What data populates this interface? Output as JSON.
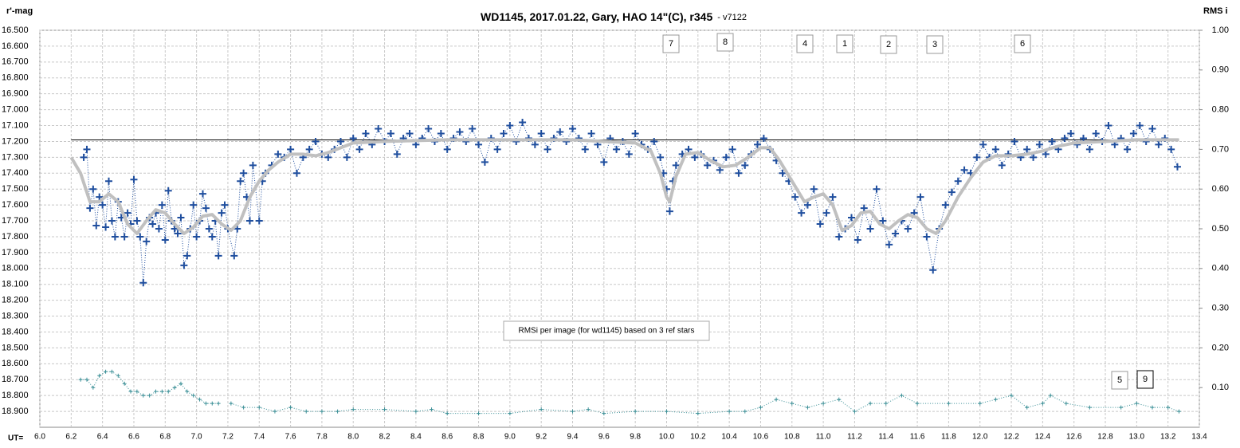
{
  "chart_data": {
    "type": "scatter",
    "title": "WD1145, 2017.01.22,  Gary,  HAO 14\"(C),  r345",
    "subtitle": "- v7122",
    "y_label": "r'-mag",
    "y2_label": "RMS i",
    "x_label": "UT=",
    "note": "RMSi per image (for wd1145) based on 3 ref stars",
    "annotations": [
      "7",
      "8",
      "4",
      "1",
      "2",
      "3",
      "6",
      "5",
      "9"
    ],
    "xlim": [
      6.0,
      13.4
    ],
    "ylim": [
      19.0,
      16.5
    ],
    "y2lim": [
      0,
      1
    ],
    "grid": true,
    "reference_line": {
      "value": 17.19,
      "color": "#000000"
    },
    "xticks": [
      {
        "value": 6.0,
        "label": "6.0"
      },
      {
        "value": 6.2,
        "label": "6.2"
      },
      {
        "value": 6.4,
        "label": "6.4"
      },
      {
        "value": 6.6,
        "label": "6.6"
      },
      {
        "value": 6.8,
        "label": "6.8"
      },
      {
        "value": 7.0,
        "label": "7.0"
      },
      {
        "value": 7.2,
        "label": "7.2"
      },
      {
        "value": 7.4,
        "label": "7.4"
      },
      {
        "value": 7.6,
        "label": "7.6"
      },
      {
        "value": 7.8,
        "label": "7.8"
      },
      {
        "value": 8.0,
        "label": "8.0"
      },
      {
        "value": 8.2,
        "label": "8.2"
      },
      {
        "value": 8.4,
        "label": "8.4"
      },
      {
        "value": 8.6,
        "label": "8.6"
      },
      {
        "value": 8.8,
        "label": "8.8"
      },
      {
        "value": 9.0,
        "label": "9.0"
      },
      {
        "value": 9.2,
        "label": "9.2"
      },
      {
        "value": 9.4,
        "label": "9.4"
      },
      {
        "value": 9.6,
        "label": "9.6"
      },
      {
        "value": 9.8,
        "label": "9.8"
      },
      {
        "value": 10.0,
        "label": "10.0"
      },
      {
        "value": 10.2,
        "label": "10.2"
      },
      {
        "value": 10.4,
        "label": "10.4"
      },
      {
        "value": 10.6,
        "label": "10.6"
      },
      {
        "value": 10.8,
        "label": "10.8"
      },
      {
        "value": 11.0,
        "label": "11.0"
      },
      {
        "value": 11.2,
        "label": "11.2"
      },
      {
        "value": 11.4,
        "label": "11.4"
      },
      {
        "value": 11.6,
        "label": "11.6"
      },
      {
        "value": 11.8,
        "label": "11.8"
      },
      {
        "value": 12.0,
        "label": "12.0"
      },
      {
        "value": 12.2,
        "label": "12.2"
      },
      {
        "value": 12.4,
        "label": "12.4"
      },
      {
        "value": 12.6,
        "label": "12.6"
      },
      {
        "value": 12.8,
        "label": "12.8"
      },
      {
        "value": 13.0,
        "label": "13.0"
      },
      {
        "value": 13.2,
        "label": "13.2"
      },
      {
        "value": 13.4,
        "label": "13.4"
      }
    ],
    "yticks": [
      {
        "value": 16.5,
        "label": "16.500"
      },
      {
        "value": 16.6,
        "label": "16.600"
      },
      {
        "value": 16.7,
        "label": "16.700"
      },
      {
        "value": 16.8,
        "label": "16.800"
      },
      {
        "value": 16.9,
        "label": "16.900"
      },
      {
        "value": 17.0,
        "label": "17.000"
      },
      {
        "value": 17.1,
        "label": "17.100"
      },
      {
        "value": 17.2,
        "label": "17.200"
      },
      {
        "value": 17.3,
        "label": "17.300"
      },
      {
        "value": 17.4,
        "label": "17.400"
      },
      {
        "value": 17.5,
        "label": "17.500"
      },
      {
        "value": 17.6,
        "label": "17.600"
      },
      {
        "value": 17.7,
        "label": "17.700"
      },
      {
        "value": 17.8,
        "label": "17.800"
      },
      {
        "value": 17.9,
        "label": "17.900"
      },
      {
        "value": 18.0,
        "label": "18.000"
      },
      {
        "value": 18.1,
        "label": "18.100"
      },
      {
        "value": 18.2,
        "label": "18.200"
      },
      {
        "value": 18.3,
        "label": "18.300"
      },
      {
        "value": 18.4,
        "label": "18.400"
      },
      {
        "value": 18.5,
        "label": "18.500"
      },
      {
        "value": 18.6,
        "label": "18.600"
      },
      {
        "value": 18.7,
        "label": "18.700"
      },
      {
        "value": 18.8,
        "label": "18.800"
      },
      {
        "value": 18.9,
        "label": "18.900"
      }
    ],
    "y2ticks": [
      {
        "value": 0.1,
        "label": "0.10"
      },
      {
        "value": 0.2,
        "label": "0.20"
      },
      {
        "value": 0.3,
        "label": "0.30"
      },
      {
        "value": 0.4,
        "label": "0.40"
      },
      {
        "value": 0.5,
        "label": "0.50"
      },
      {
        "value": 0.6,
        "label": "0.60"
      },
      {
        "value": 0.7,
        "label": "0.70"
      },
      {
        "value": 0.8,
        "label": "0.80"
      },
      {
        "value": 0.9,
        "label": "0.90"
      },
      {
        "value": 1.0,
        "label": "1.00"
      }
    ],
    "series": [
      {
        "color": "#1f4e9e",
        "marker": "cross",
        "line": "dotted",
        "x": [
          6.28,
          6.3,
          6.32,
          6.34,
          6.36,
          6.38,
          6.4,
          6.42,
          6.44,
          6.46,
          6.48,
          6.5,
          6.52,
          6.54,
          6.56,
          6.58,
          6.6,
          6.62,
          6.64,
          6.66,
          6.68,
          6.7,
          6.72,
          6.74,
          6.76,
          6.78,
          6.8,
          6.82,
          6.84,
          6.86,
          6.88,
          6.9,
          6.92,
          6.94,
          6.96,
          6.98,
          7.0,
          7.02,
          7.04,
          7.06,
          7.08,
          7.1,
          7.12,
          7.14,
          7.16,
          7.18,
          7.2,
          7.24,
          7.26,
          7.28,
          7.3,
          7.32,
          7.34,
          7.36,
          7.4,
          7.42,
          7.44,
          7.48,
          7.52,
          7.56,
          7.6,
          7.64,
          7.68,
          7.72,
          7.76,
          7.8,
          7.84,
          7.88,
          7.92,
          7.96,
          8.0,
          8.04,
          8.08,
          8.12,
          8.16,
          8.2,
          8.24,
          8.28,
          8.32,
          8.36,
          8.4,
          8.44,
          8.48,
          8.52,
          8.56,
          8.6,
          8.64,
          8.68,
          8.72,
          8.76,
          8.8,
          8.84,
          8.88,
          8.92,
          8.96,
          9.0,
          9.04,
          9.08,
          9.12,
          9.16,
          9.2,
          9.24,
          9.28,
          9.32,
          9.36,
          9.4,
          9.44,
          9.48,
          9.52,
          9.56,
          9.6,
          9.64,
          9.68,
          9.72,
          9.76,
          9.8,
          9.84,
          9.88,
          9.92,
          9.96,
          9.98,
          10.0,
          10.02,
          10.04,
          10.06,
          10.1,
          10.14,
          10.18,
          10.22,
          10.26,
          10.3,
          10.34,
          10.38,
          10.42,
          10.46,
          10.5,
          10.54,
          10.58,
          10.62,
          10.66,
          10.7,
          10.74,
          10.78,
          10.82,
          10.86,
          10.9,
          10.94,
          10.98,
          11.02,
          11.06,
          11.1,
          11.14,
          11.18,
          11.22,
          11.26,
          11.3,
          11.34,
          11.38,
          11.42,
          11.46,
          11.5,
          11.54,
          11.58,
          11.62,
          11.66,
          11.7,
          11.74,
          11.78,
          11.82,
          11.86,
          11.9,
          11.94,
          11.98,
          12.02,
          12.06,
          12.1,
          12.14,
          12.18,
          12.22,
          12.26,
          12.3,
          12.34,
          12.38,
          12.42,
          12.46,
          12.5,
          12.54,
          12.58,
          12.62,
          12.66,
          12.7,
          12.74,
          12.78,
          12.82,
          12.86,
          12.9,
          12.94,
          12.98,
          13.02,
          13.06,
          13.1,
          13.14,
          13.18,
          13.22,
          13.26
        ],
        "values": [
          17.3,
          17.25,
          17.62,
          17.5,
          17.73,
          17.55,
          17.6,
          17.74,
          17.45,
          17.7,
          17.8,
          17.58,
          17.68,
          17.8,
          17.65,
          17.72,
          17.44,
          17.7,
          17.8,
          18.09,
          17.83,
          17.68,
          17.72,
          17.65,
          17.75,
          17.6,
          17.82,
          17.51,
          17.7,
          17.75,
          17.78,
          17.68,
          17.98,
          17.92,
          17.75,
          17.6,
          17.8,
          17.7,
          17.53,
          17.62,
          17.75,
          17.8,
          17.7,
          17.92,
          17.65,
          17.6,
          17.75,
          17.92,
          17.75,
          17.45,
          17.4,
          17.55,
          17.7,
          17.35,
          17.7,
          17.45,
          17.4,
          17.35,
          17.28,
          17.3,
          17.25,
          17.4,
          17.3,
          17.25,
          17.2,
          17.28,
          17.3,
          17.25,
          17.2,
          17.3,
          17.18,
          17.25,
          17.15,
          17.22,
          17.12,
          17.2,
          17.15,
          17.28,
          17.18,
          17.15,
          17.22,
          17.18,
          17.12,
          17.2,
          17.15,
          17.25,
          17.18,
          17.14,
          17.2,
          17.12,
          17.22,
          17.33,
          17.18,
          17.25,
          17.15,
          17.1,
          17.2,
          17.08,
          17.18,
          17.22,
          17.15,
          17.25,
          17.18,
          17.14,
          17.2,
          17.12,
          17.18,
          17.25,
          17.15,
          17.22,
          17.33,
          17.18,
          17.25,
          17.2,
          17.28,
          17.15,
          17.22,
          17.25,
          17.2,
          17.3,
          17.4,
          17.5,
          17.64,
          17.45,
          17.35,
          17.28,
          17.25,
          17.3,
          17.28,
          17.35,
          17.32,
          17.38,
          17.3,
          17.25,
          17.4,
          17.35,
          17.28,
          17.22,
          17.18,
          17.25,
          17.32,
          17.4,
          17.45,
          17.55,
          17.65,
          17.6,
          17.5,
          17.72,
          17.65,
          17.55,
          17.8,
          17.75,
          17.68,
          17.82,
          17.62,
          17.75,
          17.5,
          17.7,
          17.85,
          17.78,
          17.7,
          17.75,
          17.65,
          17.55,
          17.8,
          18.01,
          17.75,
          17.6,
          17.52,
          17.45,
          17.38,
          17.4,
          17.3,
          17.22,
          17.3,
          17.25,
          17.35,
          17.28,
          17.2,
          17.3,
          17.25,
          17.3,
          17.22,
          17.28,
          17.2,
          17.25,
          17.18,
          17.15,
          17.22,
          17.18,
          17.25,
          17.15,
          17.2,
          17.1,
          17.22,
          17.18,
          17.25,
          17.15,
          17.1,
          17.2,
          17.12,
          17.22,
          17.18,
          17.25,
          17.36
        ]
      },
      {
        "color": "#c0c0c0",
        "marker": "none",
        "line": "smooth",
        "x": [
          6.2,
          6.26,
          6.32,
          6.38,
          6.44,
          6.5,
          6.56,
          6.62,
          6.68,
          6.74,
          6.8,
          6.86,
          6.92,
          6.98,
          7.04,
          7.1,
          7.16,
          7.22,
          7.28,
          7.34,
          7.4,
          7.46,
          7.52,
          7.6,
          7.68,
          7.76,
          7.84,
          7.92,
          8.0,
          8.2,
          8.6,
          9.0,
          9.4,
          9.8,
          9.9,
          9.96,
          10.0,
          10.02,
          10.06,
          10.12,
          10.2,
          10.28,
          10.36,
          10.44,
          10.52,
          10.6,
          10.66,
          10.72,
          10.8,
          10.88,
          10.94,
          11.0,
          11.06,
          11.12,
          11.18,
          11.24,
          11.3,
          11.36,
          11.42,
          11.48,
          11.54,
          11.6,
          11.66,
          11.72,
          11.78,
          11.86,
          11.94,
          12.02,
          12.1,
          12.2,
          12.3,
          12.4,
          12.5,
          12.6,
          12.8,
          13.0,
          13.27
        ],
        "values": [
          17.3,
          17.4,
          17.58,
          17.58,
          17.53,
          17.58,
          17.72,
          17.78,
          17.7,
          17.63,
          17.65,
          17.72,
          17.78,
          17.74,
          17.67,
          17.66,
          17.72,
          17.76,
          17.7,
          17.55,
          17.45,
          17.38,
          17.33,
          17.28,
          17.28,
          17.29,
          17.27,
          17.24,
          17.21,
          17.2,
          17.19,
          17.19,
          17.19,
          17.21,
          17.26,
          17.4,
          17.55,
          17.58,
          17.42,
          17.28,
          17.27,
          17.32,
          17.36,
          17.35,
          17.3,
          17.24,
          17.24,
          17.32,
          17.45,
          17.58,
          17.55,
          17.53,
          17.6,
          17.76,
          17.73,
          17.65,
          17.64,
          17.72,
          17.75,
          17.7,
          17.66,
          17.68,
          17.75,
          17.78,
          17.7,
          17.55,
          17.43,
          17.33,
          17.29,
          17.29,
          17.28,
          17.26,
          17.23,
          17.21,
          17.2,
          17.19,
          17.19
        ]
      },
      {
        "color": "#3a8f96",
        "marker": "cross-small",
        "line": "dotted",
        "axis": "y2",
        "x": [
          6.26,
          6.3,
          6.34,
          6.38,
          6.42,
          6.46,
          6.5,
          6.54,
          6.58,
          6.62,
          6.66,
          6.7,
          6.74,
          6.78,
          6.82,
          6.86,
          6.9,
          6.94,
          6.98,
          7.02,
          7.06,
          7.1,
          7.14,
          7.18,
          7.22,
          7.3,
          7.4,
          7.5,
          7.6,
          7.7,
          7.8,
          7.9,
          8.0,
          8.2,
          8.4,
          8.5,
          8.6,
          8.8,
          9.0,
          9.2,
          9.4,
          9.5,
          9.6,
          9.8,
          10.0,
          10.2,
          10.4,
          10.5,
          10.6,
          10.7,
          10.8,
          10.9,
          11.0,
          11.1,
          11.2,
          11.3,
          11.4,
          11.5,
          11.6,
          11.8,
          12.0,
          12.1,
          12.2,
          12.3,
          12.4,
          12.45,
          12.55,
          12.7,
          12.9,
          13.0,
          13.1,
          13.2,
          13.27
        ],
        "values": [
          0.12,
          0.12,
          0.1,
          0.13,
          0.14,
          0.14,
          0.13,
          0.11,
          0.09,
          0.09,
          0.08,
          0.08,
          0.09,
          0.09,
          0.09,
          0.1,
          0.11,
          0.09,
          0.08,
          0.07,
          0.06,
          0.06,
          0.06,
          null,
          0.06,
          0.05,
          0.05,
          0.04,
          0.05,
          0.04,
          0.04,
          0.04,
          0.045,
          0.045,
          0.04,
          0.045,
          0.035,
          0.035,
          0.035,
          0.045,
          0.04,
          0.045,
          0.035,
          0.04,
          0.04,
          0.035,
          0.04,
          0.04,
          0.05,
          0.07,
          0.06,
          0.05,
          0.06,
          0.07,
          0.04,
          0.06,
          0.06,
          0.08,
          0.06,
          0.06,
          0.06,
          0.07,
          0.08,
          0.05,
          0.06,
          0.08,
          0.06,
          0.05,
          0.05,
          0.06,
          0.05,
          0.05,
          0.04
        ]
      }
    ]
  }
}
